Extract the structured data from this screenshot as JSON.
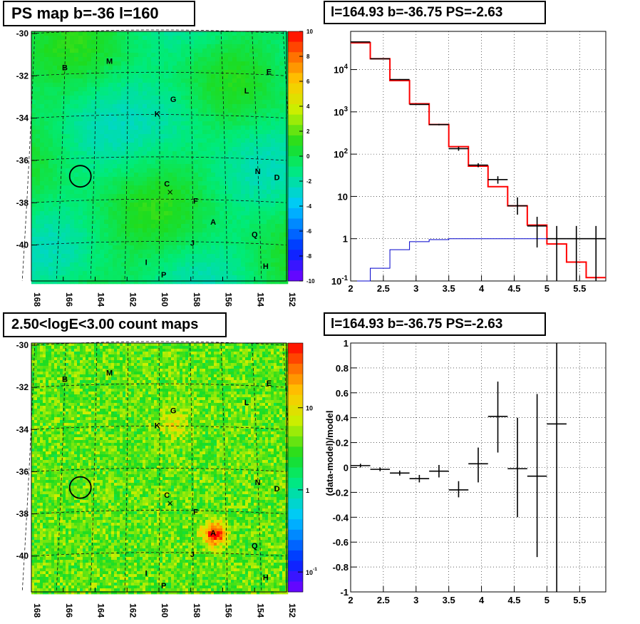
{
  "panels": {
    "tl": {
      "title": "PS map b=-36 l=160"
    },
    "tr": {
      "title": "l=164.93 b=-36.75 PS=-2.63"
    },
    "bl": {
      "title": "2.50<logE<3.00 count maps"
    },
    "br": {
      "title": "l=164.93 b=-36.75 PS=-2.63"
    }
  },
  "chart_data": [
    {
      "panel": "tl",
      "type": "heatmap",
      "title": "PS map b=-36 l=160",
      "x_ticks": [
        "168",
        "166",
        "164",
        "162",
        "160",
        "158",
        "156",
        "154",
        "152"
      ],
      "y_ticks": [
        "-30",
        "-32",
        "-34",
        "-36",
        "-38",
        "-40"
      ],
      "xlim": [
        168,
        152
      ],
      "ylim": [
        -41.7,
        -29.9
      ],
      "zlim": [
        -10,
        10
      ],
      "colorbar_ticks": [
        "10",
        "8",
        "6",
        "4",
        "2",
        "0",
        "-2",
        "-4",
        "-6",
        "-8",
        "-10"
      ],
      "sources": [
        {
          "name": "B",
          "l": 165.9,
          "b": -31.6
        },
        {
          "name": "M",
          "l": 163.1,
          "b": -31.3
        },
        {
          "name": "E",
          "l": 153.1,
          "b": -31.8
        },
        {
          "name": "L",
          "l": 154.5,
          "b": -32.7
        },
        {
          "name": "G",
          "l": 159.1,
          "b": -33.1
        },
        {
          "name": "K",
          "l": 160.1,
          "b": -33.8
        },
        {
          "name": "N",
          "l": 153.8,
          "b": -36.5
        },
        {
          "name": "D",
          "l": 152.6,
          "b": -36.8
        },
        {
          "name": "C",
          "l": 159.5,
          "b": -37.1
        },
        {
          "name": "F",
          "l": 157.7,
          "b": -37.9
        },
        {
          "name": "A",
          "l": 156.6,
          "b": -38.9
        },
        {
          "name": "Q",
          "l": 154.0,
          "b": -39.5
        },
        {
          "name": "J",
          "l": 157.9,
          "b": -39.9
        },
        {
          "name": "I",
          "l": 160.8,
          "b": -40.8
        },
        {
          "name": "H",
          "l": 153.3,
          "b": -41.0
        },
        {
          "name": "P",
          "l": 159.7,
          "b": -41.4
        }
      ],
      "target": {
        "l": 164.93,
        "b": -36.75
      }
    },
    {
      "panel": "tr",
      "type": "line",
      "title": "l=164.93 b=-36.75 PS=-2.63",
      "xlim": [
        2,
        5.9
      ],
      "ylim": [
        0.1,
        80000
      ],
      "y_log": true,
      "x_ticks": [
        "2",
        "2.5",
        "3",
        "3.5",
        "4",
        "4.5",
        "5",
        "5.5"
      ],
      "y_ticks": [
        "10^-1",
        "1",
        "10",
        "10^2",
        "10^3",
        "10^4"
      ],
      "grid": true,
      "edges": [
        2,
        2.3,
        2.6,
        2.9,
        3.2,
        3.5,
        3.8,
        4.1,
        4.4,
        4.7,
        5.0,
        5.3,
        5.6,
        5.9
      ],
      "series": [
        {
          "role": "model",
          "color": "#ff0000",
          "values": [
            43000,
            18000,
            5500,
            1550,
            500,
            150,
            52,
            17,
            6,
            2.1,
            0.75,
            0.28,
            0.12
          ]
        },
        {
          "role": "background",
          "color": "#0000cc",
          "values": [
            0.1,
            0.2,
            0.55,
            0.85,
            0.95,
            1.0,
            1.0,
            1.0,
            1.0,
            1.0,
            1.0,
            1.0,
            1.0
          ]
        },
        {
          "role": "data",
          "color": "#000000",
          "values": [
            45000,
            18000,
            5800,
            1500,
            500,
            135,
            55,
            25,
            6,
            2.0,
            1.0,
            1.0,
            1.0
          ],
          "err_lo": [
            44000,
            17700,
            5650,
            1460,
            480,
            120,
            49,
            20,
            3.7,
            0.62,
            0.1,
            0.1,
            0.1
          ],
          "err_hi": [
            46000,
            18300,
            5950,
            1540,
            520,
            150,
            61,
            30,
            9.5,
            3.3,
            2.0,
            2.0,
            2.0
          ]
        }
      ]
    },
    {
      "panel": "bl",
      "type": "heatmap",
      "title": "2.50<logE<3.00 count maps",
      "x_ticks": [
        "168",
        "166",
        "164",
        "162",
        "160",
        "158",
        "156",
        "154",
        "152"
      ],
      "y_ticks": [
        "-30",
        "-32",
        "-34",
        "-36",
        "-38",
        "-40"
      ],
      "xlim": [
        168,
        152
      ],
      "ylim": [
        -41.7,
        -29.9
      ],
      "z_log": true,
      "colorbar_ticks": [
        "10",
        "1",
        "10^-1"
      ],
      "sources": [
        {
          "name": "B",
          "l": 165.9,
          "b": -31.6
        },
        {
          "name": "M",
          "l": 163.1,
          "b": -31.3
        },
        {
          "name": "E",
          "l": 153.1,
          "b": -31.8
        },
        {
          "name": "L",
          "l": 154.5,
          "b": -32.7
        },
        {
          "name": "G",
          "l": 159.1,
          "b": -33.1
        },
        {
          "name": "K",
          "l": 160.1,
          "b": -33.8
        },
        {
          "name": "N",
          "l": 153.8,
          "b": -36.5
        },
        {
          "name": "D",
          "l": 152.6,
          "b": -36.8
        },
        {
          "name": "C",
          "l": 159.5,
          "b": -37.1
        },
        {
          "name": "F",
          "l": 157.7,
          "b": -37.9
        },
        {
          "name": "A",
          "l": 156.6,
          "b": -38.9
        },
        {
          "name": "Q",
          "l": 154.0,
          "b": -39.5
        },
        {
          "name": "J",
          "l": 157.9,
          "b": -39.9
        },
        {
          "name": "I",
          "l": 160.8,
          "b": -40.8
        },
        {
          "name": "H",
          "l": 153.3,
          "b": -41.0
        },
        {
          "name": "P",
          "l": 159.7,
          "b": -41.4
        }
      ],
      "target": {
        "l": 164.93,
        "b": -36.75
      }
    },
    {
      "panel": "br",
      "type": "scatter",
      "title": "l=164.93 b=-36.75 PS=-2.63",
      "ylabel": "(data-model)/model",
      "xlim": [
        2,
        5.9
      ],
      "ylim": [
        -1,
        1
      ],
      "x_ticks": [
        "2",
        "2.5",
        "3",
        "3.5",
        "4",
        "4.5",
        "5",
        "5.5"
      ],
      "y_ticks": [
        "-1",
        "-0.8",
        "-0.6",
        "-0.4",
        "-0.2",
        "0",
        "0.2",
        "0.4",
        "0.6",
        "0.8",
        "1"
      ],
      "grid": true,
      "points": [
        {
          "x": 2.15,
          "xerr": 0.15,
          "y": 0.015,
          "ylo": 0.0,
          "yhi": 0.03
        },
        {
          "x": 2.45,
          "xerr": 0.15,
          "y": -0.015,
          "ylo": -0.03,
          "yhi": 0.0
        },
        {
          "x": 2.75,
          "xerr": 0.15,
          "y": -0.045,
          "ylo": -0.065,
          "yhi": -0.025
        },
        {
          "x": 3.05,
          "xerr": 0.15,
          "y": -0.09,
          "ylo": -0.12,
          "yhi": -0.06
        },
        {
          "x": 3.35,
          "xerr": 0.15,
          "y": -0.03,
          "ylo": -0.08,
          "yhi": 0.02
        },
        {
          "x": 3.65,
          "xerr": 0.15,
          "y": -0.18,
          "ylo": -0.24,
          "yhi": -0.11
        },
        {
          "x": 3.95,
          "xerr": 0.15,
          "y": 0.03,
          "ylo": -0.12,
          "yhi": 0.16
        },
        {
          "x": 4.25,
          "xerr": 0.15,
          "y": 0.41,
          "ylo": 0.12,
          "yhi": 0.69
        },
        {
          "x": 4.55,
          "xerr": 0.15,
          "y": -0.01,
          "ylo": -0.4,
          "yhi": 0.4
        },
        {
          "x": 4.85,
          "xerr": 0.15,
          "y": -0.07,
          "ylo": -0.72,
          "yhi": 0.59
        },
        {
          "x": 5.15,
          "xerr": 0.15,
          "y": 0.35,
          "ylo": -1.0,
          "yhi": 1.0
        }
      ]
    }
  ]
}
